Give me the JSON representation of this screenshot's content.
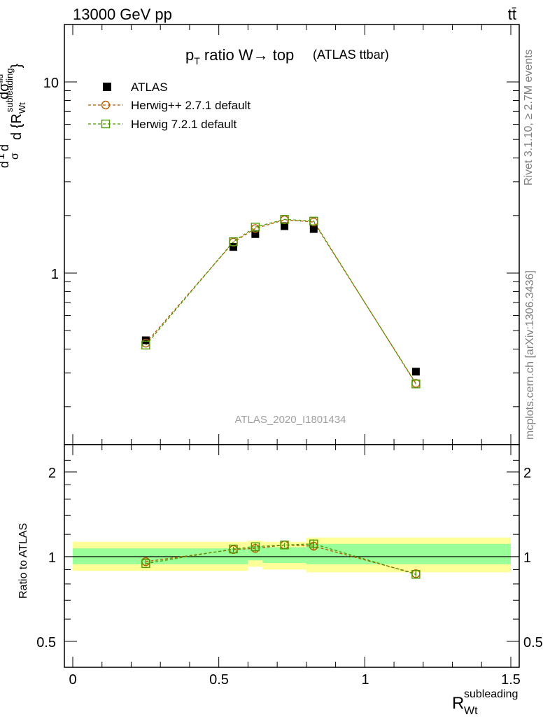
{
  "header": {
    "energy_label": "13000 GeV pp",
    "process_label": "tt̄"
  },
  "side_labels": {
    "rivet": "Rivet 3.1.10, ≥ 2.7M events",
    "mcplots": "mcplots.cern.ch [arXiv:1306.3436]"
  },
  "chart_data": [
    {
      "type": "scatter",
      "title_main": "p",
      "title_sub": "T",
      "title_rest": " ratio W→ top",
      "title_paren": "(ATLAS ttbar)",
      "ylabel_main": "d σ / d {R_Wt^subleading}",
      "ylabel_parts": {
        "frac_d": "d",
        "sigma": "σ",
        "one": "1",
        "dd": "d",
        "dsigma": "dσ",
        "fid": "fid",
        "d_open": "d {R",
        "sub": "Wt",
        "sup": "subleading",
        "close": "}"
      },
      "yscale": "log",
      "ylim": [
        0.16,
        20
      ],
      "y_tick_labels": [
        "1",
        "10"
      ],
      "xlim": [
        -0.03,
        1.53
      ],
      "watermark": "ATLAS_2020_I1801434",
      "legend_placement": "top-left",
      "x": [
        0.25,
        0.55,
        0.625,
        0.725,
        0.825,
        1.175
      ],
      "series": [
        {
          "name": "ATLAS",
          "marker": "filled-square",
          "color": "#000000",
          "values": [
            0.445,
            1.37,
            1.6,
            1.76,
            1.7,
            0.305
          ],
          "errors": [
            0.02,
            0.04,
            0.05,
            0.05,
            0.05,
            0.012
          ]
        },
        {
          "name": "Herwig++ 2.7.1 default",
          "marker": "open-circle",
          "color": "#b35900",
          "values": [
            0.43,
            1.45,
            1.71,
            1.9,
            1.85,
            0.265
          ]
        },
        {
          "name": "Herwig 7.2.1 default",
          "marker": "open-square",
          "color": "#4d9900",
          "values": [
            0.42,
            1.46,
            1.74,
            1.91,
            1.87,
            0.263
          ]
        }
      ]
    },
    {
      "type": "scatter",
      "ylabel": "Ratio to ATLAS",
      "xlabel_main": "R",
      "xlabel_sub": "Wt",
      "xlabel_sup": "subleading",
      "yscale": "log",
      "ylim": [
        0.43,
        2.4
      ],
      "y_tick_labels": [
        "0.5",
        "1",
        "2"
      ],
      "x_tick_labels": [
        "0",
        "0.5",
        "1",
        "1.5"
      ],
      "xlim": [
        -0.03,
        1.53
      ],
      "bands": [
        {
          "x": [
            0.0,
            0.6
          ],
          "inner": [
            0.94,
            1.07
          ],
          "outer": [
            0.89,
            1.13
          ]
        },
        {
          "x": [
            0.6,
            0.65
          ],
          "inner": [
            0.97,
            1.09
          ],
          "outer": [
            0.92,
            1.14
          ]
        },
        {
          "x": [
            0.65,
            0.8
          ],
          "inner": [
            0.95,
            1.08
          ],
          "outer": [
            0.9,
            1.13
          ]
        },
        {
          "x": [
            0.8,
            1.5
          ],
          "inner": [
            0.94,
            1.11
          ],
          "outer": [
            0.88,
            1.17
          ]
        }
      ],
      "band_colors": {
        "inner": "#99ff99",
        "outer": "#ffff99"
      },
      "series": [
        {
          "name": "Herwig++ 2.7.1 default",
          "values": [
            0.96,
            1.06,
            1.07,
            1.1,
            1.09,
            0.87
          ],
          "errors": [
            0.01,
            0.02,
            0.03,
            0.02,
            0.04,
            0.02
          ]
        },
        {
          "name": "Herwig 7.2.1 default",
          "values": [
            0.945,
            1.065,
            1.085,
            1.1,
            1.11,
            0.865
          ],
          "errors": [
            0.01,
            0.02,
            0.03,
            0.02,
            0.04,
            0.02
          ]
        }
      ]
    }
  ]
}
